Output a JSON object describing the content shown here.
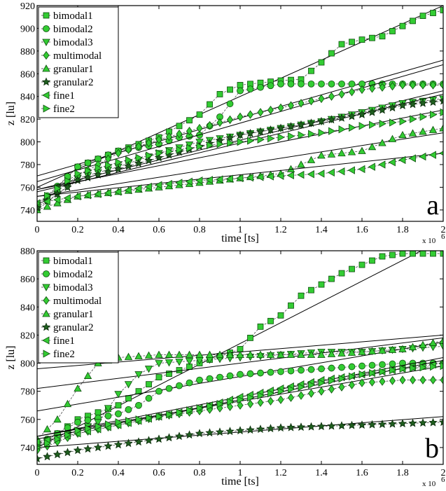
{
  "chart_data": [
    {
      "type": "line",
      "panel_label": "a",
      "xlabel": "time [ts]",
      "ylabel": "z [lu]",
      "x_multiplier_label": "x 10",
      "x_multiplier_exp": "6",
      "xlim": [
        0,
        2
      ],
      "ylim": [
        730,
        920
      ],
      "xticks": [
        "0",
        "0.2",
        "0.4",
        "0.6",
        "0.8",
        "1",
        "1.2",
        "1.4",
        "1.6",
        "1.8",
        "2"
      ],
      "yticks": [
        "740",
        "760",
        "780",
        "800",
        "820",
        "840",
        "860",
        "880",
        "900",
        "920"
      ],
      "legend_position": "top-left",
      "series": [
        {
          "name": "bimodal1",
          "marker": "square",
          "points": [
            [
              0,
              742
            ],
            [
              0.2,
              778
            ],
            [
              0.4,
              792
            ],
            [
              0.6,
              804
            ],
            [
              0.8,
              824
            ],
            [
              0.9,
              842
            ],
            [
              1.0,
              850
            ],
            [
              1.2,
              854
            ],
            [
              1.3,
              855
            ],
            [
              1.4,
              870
            ],
            [
              1.5,
              886
            ],
            [
              1.6,
              890
            ],
            [
              1.7,
              893
            ],
            [
              1.8,
              902
            ],
            [
              1.9,
              911
            ],
            [
              2.0,
              916
            ]
          ],
          "fit": [
            [
              0,
              760
            ],
            [
              2,
              920
            ]
          ]
        },
        {
          "name": "bimodal2",
          "marker": "circle",
          "points": [
            [
              0,
              744
            ],
            [
              0.2,
              778
            ],
            [
              0.4,
              792
            ],
            [
              0.6,
              798
            ],
            [
              0.7,
              804
            ],
            [
              0.8,
              806
            ],
            [
              0.9,
              822
            ],
            [
              1.0,
              845
            ],
            [
              1.2,
              851
            ],
            [
              1.4,
              851
            ],
            [
              1.6,
              851
            ],
            [
              1.8,
              851
            ],
            [
              2.0,
              851
            ]
          ],
          "fit": [
            [
              0,
              770
            ],
            [
              2,
              872
            ]
          ]
        },
        {
          "name": "bimodal3",
          "marker": "triangle-down",
          "points": [
            [
              0,
              740
            ],
            [
              0.2,
              768
            ],
            [
              0.4,
              778
            ],
            [
              0.6,
              790
            ],
            [
              0.8,
              800
            ],
            [
              1.0,
              806
            ],
            [
              1.2,
              812
            ],
            [
              1.4,
              818
            ],
            [
              1.6,
              826
            ],
            [
              1.8,
              834
            ],
            [
              2.0,
              838
            ]
          ],
          "fit": [
            [
              0,
              758
            ],
            [
              2,
              845
            ]
          ]
        },
        {
          "name": "multimodal",
          "marker": "diamond",
          "points": [
            [
              0,
              744
            ],
            [
              0.2,
              770
            ],
            [
              0.4,
              790
            ],
            [
              0.6,
              802
            ],
            [
              0.8,
              812
            ],
            [
              1.0,
              822
            ],
            [
              1.2,
              830
            ],
            [
              1.4,
              838
            ],
            [
              1.6,
              846
            ],
            [
              1.8,
              850
            ],
            [
              2.0,
              850
            ]
          ],
          "fit": [
            [
              0,
              765
            ],
            [
              2,
              868
            ]
          ]
        },
        {
          "name": "granular1",
          "marker": "triangle-up",
          "points": [
            [
              0,
              740
            ],
            [
              0.2,
              752
            ],
            [
              0.4,
              756
            ],
            [
              0.6,
              760
            ],
            [
              0.8,
              764
            ],
            [
              1.0,
              768
            ],
            [
              1.2,
              772
            ],
            [
              1.4,
              788
            ],
            [
              1.6,
              792
            ],
            [
              1.8,
              806
            ],
            [
              2.0,
              812
            ]
          ],
          "fit": [
            [
              0,
              752
            ],
            [
              2,
              808
            ]
          ]
        },
        {
          "name": "granular2",
          "marker": "star",
          "points": [
            [
              0,
              742
            ],
            [
              0.2,
              766
            ],
            [
              0.4,
              776
            ],
            [
              0.6,
              786
            ],
            [
              0.8,
              796
            ],
            [
              1.0,
              806
            ],
            [
              1.2,
              812
            ],
            [
              1.4,
              818
            ],
            [
              1.6,
              824
            ],
            [
              1.8,
              832
            ],
            [
              2.0,
              836
            ]
          ],
          "fit": [
            [
              0,
              756
            ],
            [
              2,
              842
            ]
          ]
        },
        {
          "name": "fine1",
          "marker": "triangle-left",
          "points": [
            [
              0,
              746
            ],
            [
              0.2,
              752
            ],
            [
              0.4,
              756
            ],
            [
              0.6,
              762
            ],
            [
              0.8,
              766
            ],
            [
              1.0,
              768
            ],
            [
              1.2,
              770
            ],
            [
              1.4,
              772
            ],
            [
              1.6,
              776
            ],
            [
              1.8,
              784
            ],
            [
              2.0,
              790
            ]
          ],
          "fit": [
            [
              0,
              752
            ],
            [
              2,
              790
            ]
          ]
        },
        {
          "name": "fine2",
          "marker": "triangle-right",
          "points": [
            [
              0,
              746
            ],
            [
              0.2,
              772
            ],
            [
              0.4,
              782
            ],
            [
              0.6,
              790
            ],
            [
              0.8,
              796
            ],
            [
              1.0,
              800
            ],
            [
              1.2,
              804
            ],
            [
              1.4,
              808
            ],
            [
              1.6,
              814
            ],
            [
              1.8,
              818
            ],
            [
              2.0,
              826
            ]
          ],
          "fit": [
            [
              0,
              758
            ],
            [
              2,
              828
            ]
          ]
        }
      ]
    },
    {
      "type": "line",
      "panel_label": "b",
      "xlabel": "time [ts]",
      "ylabel": "z [lu]",
      "x_multiplier_label": "x 10",
      "x_multiplier_exp": "6",
      "xlim": [
        0,
        2
      ],
      "ylim": [
        728,
        880
      ],
      "xticks": [
        "0",
        "0.2",
        "0.4",
        "0.6",
        "0.8",
        "1",
        "1.2",
        "1.4",
        "1.6",
        "1.8",
        "2"
      ],
      "yticks": [
        "740",
        "760",
        "780",
        "800",
        "820",
        "840",
        "860",
        "880"
      ],
      "legend_position": "top-left",
      "series": [
        {
          "name": "bimodal1",
          "marker": "square",
          "points": [
            [
              0,
              740
            ],
            [
              0.2,
              760
            ],
            [
              0.4,
              770
            ],
            [
              0.6,
              790
            ],
            [
              0.8,
              800
            ],
            [
              1.0,
              810
            ],
            [
              1.1,
              826
            ],
            [
              1.2,
              834
            ],
            [
              1.3,
              848
            ],
            [
              1.4,
              856
            ],
            [
              1.5,
              864
            ],
            [
              1.6,
              870
            ],
            [
              1.7,
              876
            ],
            [
              1.8,
              878
            ],
            [
              2.0,
              878
            ]
          ],
          "fit": [
            [
              0,
              740
            ],
            [
              2,
              888
            ]
          ]
        },
        {
          "name": "bimodal2",
          "marker": "circle",
          "points": [
            [
              0,
              742
            ],
            [
              0.2,
              758
            ],
            [
              0.4,
              764
            ],
            [
              0.5,
              770
            ],
            [
              0.6,
              780
            ],
            [
              0.8,
              788
            ],
            [
              1.0,
              792
            ],
            [
              1.2,
              794
            ],
            [
              1.4,
              796
            ],
            [
              1.6,
              798
            ],
            [
              1.8,
              800
            ],
            [
              2.0,
              800
            ]
          ],
          "fit": [
            [
              0,
              766
            ],
            [
              2,
              815
            ]
          ]
        },
        {
          "name": "bimodal3",
          "marker": "triangle-down",
          "points": [
            [
              0,
              742
            ],
            [
              0.2,
              752
            ],
            [
              0.3,
              758
            ],
            [
              0.4,
              778
            ],
            [
              0.5,
              792
            ],
            [
              0.6,
              800
            ],
            [
              0.8,
              802
            ],
            [
              1.0,
              804
            ],
            [
              1.2,
              806
            ],
            [
              1.4,
              808
            ],
            [
              1.6,
              808
            ],
            [
              1.8,
              810
            ],
            [
              2.0,
              812
            ]
          ],
          "fit": [
            [
              0,
              782
            ],
            [
              2,
              818
            ]
          ]
        },
        {
          "name": "multimodal",
          "marker": "diamond",
          "points": [
            [
              0,
              738
            ],
            [
              0.2,
              750
            ],
            [
              0.4,
              756
            ],
            [
              0.6,
              762
            ],
            [
              0.8,
              766
            ],
            [
              1.0,
              770
            ],
            [
              1.2,
              774
            ],
            [
              1.4,
              780
            ],
            [
              1.6,
              786
            ],
            [
              1.8,
              788
            ],
            [
              2.0,
              788
            ]
          ],
          "fit": [
            [
              0,
              748
            ],
            [
              2,
              798
            ]
          ]
        },
        {
          "name": "granular1",
          "marker": "triangle-up",
          "points": [
            [
              0,
              746
            ],
            [
              0.1,
              760
            ],
            [
              0.2,
              782
            ],
            [
              0.3,
              800
            ],
            [
              0.4,
              804
            ],
            [
              0.6,
              806
            ],
            [
              0.8,
              806
            ],
            [
              1.0,
              806
            ],
            [
              1.2,
              806
            ],
            [
              1.4,
              806
            ],
            [
              1.6,
              808
            ],
            [
              1.8,
              810
            ],
            [
              2.0,
              816
            ]
          ],
          "fit": [
            [
              0,
              796
            ],
            [
              2,
              820
            ]
          ]
        },
        {
          "name": "granular2",
          "marker": "star",
          "points": [
            [
              0,
              732
            ],
            [
              0.2,
              738
            ],
            [
              0.4,
              742
            ],
            [
              0.6,
              746
            ],
            [
              0.8,
              750
            ],
            [
              1.0,
              752
            ],
            [
              1.2,
              754
            ],
            [
              1.4,
              755
            ],
            [
              1.6,
              756
            ],
            [
              1.8,
              757
            ],
            [
              2.0,
              758
            ]
          ],
          "fit": [
            [
              0,
              740
            ],
            [
              2,
              762
            ]
          ]
        },
        {
          "name": "fine1",
          "marker": "triangle-left",
          "points": [
            [
              0,
              744
            ],
            [
              0.2,
              750
            ],
            [
              0.4,
              756
            ],
            [
              0.6,
              762
            ],
            [
              0.8,
              768
            ],
            [
              1.0,
              776
            ],
            [
              1.2,
              782
            ],
            [
              1.4,
              788
            ],
            [
              1.6,
              792
            ],
            [
              1.8,
              796
            ],
            [
              2.0,
              800
            ]
          ],
          "fit": [
            [
              0,
              748
            ],
            [
              2,
              804
            ]
          ]
        },
        {
          "name": "fine2",
          "marker": "triangle-right",
          "points": [
            [
              0,
              740
            ],
            [
              0.2,
              752
            ],
            [
              0.4,
              758
            ],
            [
              0.6,
              762
            ],
            [
              0.8,
              768
            ],
            [
              1.0,
              774
            ],
            [
              1.2,
              780
            ],
            [
              1.4,
              786
            ],
            [
              1.6,
              792
            ],
            [
              1.8,
              796
            ],
            [
              2.0,
              798
            ]
          ],
          "fit": [
            [
              0,
              746
            ],
            [
              2,
              802
            ]
          ]
        }
      ]
    }
  ],
  "colors": {
    "marker_fill": "#33cc33",
    "marker_edge": "#0d4d0d",
    "fit_line": "#000000",
    "axis": "#000000",
    "background": "#ffffff"
  }
}
